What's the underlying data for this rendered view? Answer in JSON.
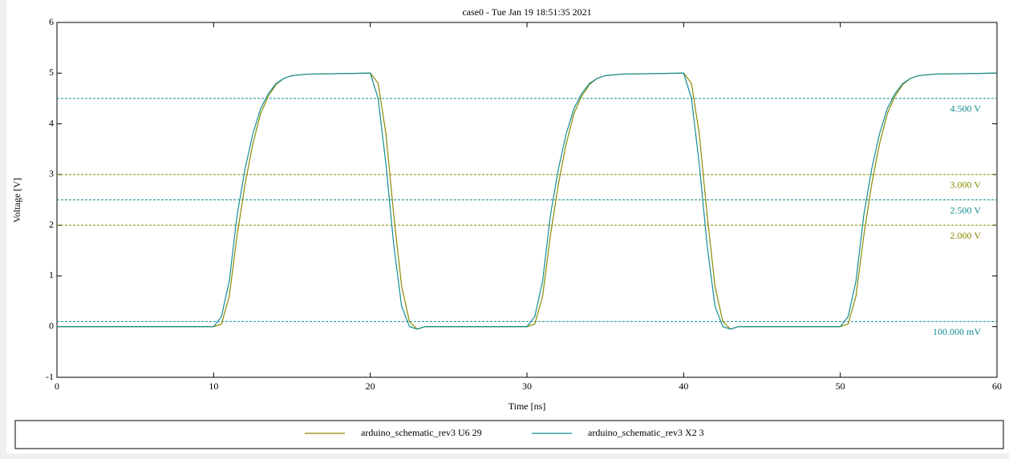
{
  "chart_data": {
    "type": "line",
    "title": "case0 - Tue Jan 19 18:51:35 2021",
    "x_label": "Time [ns]",
    "y_label": "Voltage [V]",
    "xlim": [
      0,
      60
    ],
    "ylim": [
      -1,
      6
    ],
    "xticks": [
      0,
      10,
      20,
      30,
      40,
      50,
      60
    ],
    "yticks": [
      -1,
      0,
      1,
      2,
      3,
      4,
      5,
      6
    ],
    "x": [
      0,
      10,
      10.5,
      11,
      11.5,
      12,
      12.5,
      13,
      13.5,
      14,
      14.5,
      15,
      16,
      20,
      20.5,
      21,
      21.5,
      22,
      22.5,
      23,
      23.5,
      30,
      30.5,
      31,
      31.5,
      32,
      32.5,
      33,
      33.5,
      34,
      34.5,
      35,
      36,
      40,
      40.5,
      41,
      41.5,
      42,
      42.5,
      43,
      43.5,
      50,
      50.5,
      51,
      51.5,
      52,
      52.5,
      53,
      53.5,
      54,
      54.5,
      55,
      56,
      60
    ],
    "series": [
      {
        "name": "arduino_schematic_rev3 U6 29",
        "color": "#8a8a00",
        "values": [
          0,
          0,
          0.05,
          0.6,
          1.8,
          2.8,
          3.6,
          4.2,
          4.55,
          4.78,
          4.9,
          4.95,
          4.98,
          5,
          4.8,
          3.8,
          2.2,
          0.8,
          0.1,
          -0.05,
          0,
          0,
          0.05,
          0.6,
          1.8,
          2.8,
          3.6,
          4.2,
          4.55,
          4.78,
          4.9,
          4.95,
          4.98,
          5,
          4.8,
          3.8,
          2.2,
          0.8,
          0.1,
          -0.05,
          0,
          0,
          0.05,
          0.6,
          1.8,
          2.8,
          3.6,
          4.2,
          4.55,
          4.78,
          4.9,
          4.95,
          4.98,
          5
        ]
      },
      {
        "name": "arduino_schematic_rev3 X2 3",
        "color": "#138d90",
        "values": [
          0,
          0,
          0.2,
          0.9,
          2.2,
          3.1,
          3.8,
          4.3,
          4.6,
          4.8,
          4.9,
          4.95,
          4.98,
          5,
          4.5,
          3.2,
          1.6,
          0.4,
          0,
          -0.05,
          0,
          0,
          0.2,
          0.9,
          2.2,
          3.1,
          3.8,
          4.3,
          4.6,
          4.8,
          4.9,
          4.95,
          4.98,
          5,
          4.5,
          3.2,
          1.6,
          0.4,
          0,
          -0.05,
          0,
          0,
          0.2,
          0.9,
          2.2,
          3.1,
          3.8,
          4.3,
          4.6,
          4.8,
          4.9,
          4.95,
          4.98,
          5
        ]
      }
    ],
    "reference_lines": [
      {
        "value": 4.5,
        "label": "4.500 V",
        "color": "#138d90"
      },
      {
        "value": 3,
        "label": "3.000 V",
        "color": "#8a8a00"
      },
      {
        "value": 2.5,
        "label": "2.500 V",
        "color": "#138d90"
      },
      {
        "value": 2,
        "label": "2.000 V",
        "color": "#8a8a00"
      },
      {
        "value": 0.1,
        "label": "100.000 mV",
        "color": "#138d90"
      }
    ]
  }
}
